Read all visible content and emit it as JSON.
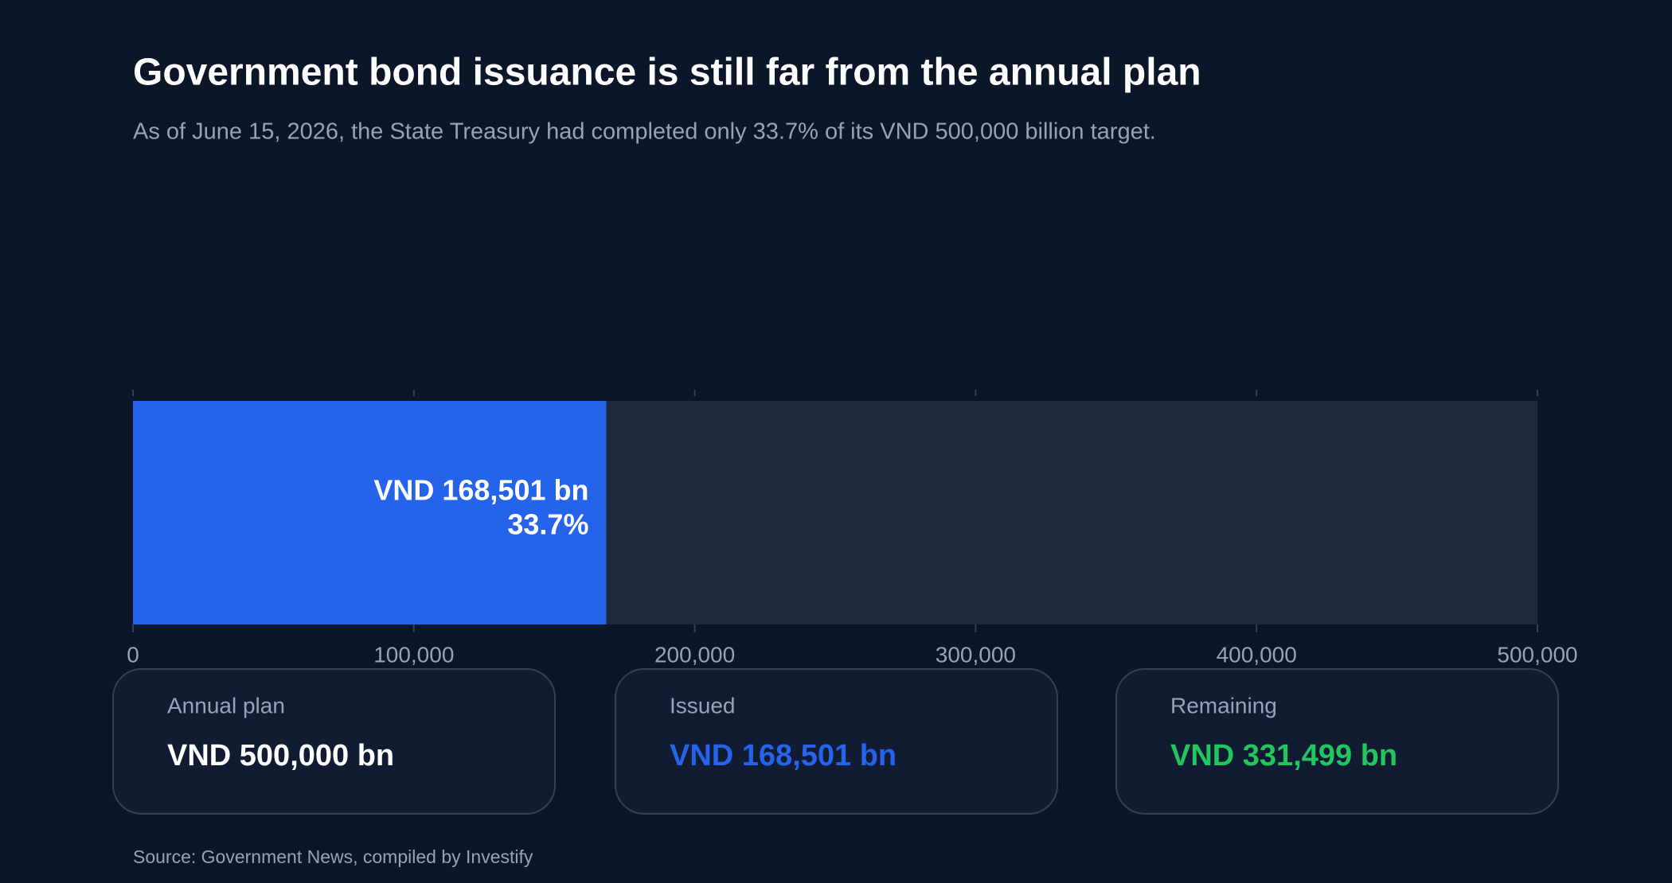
{
  "chart_data": {
    "type": "bar",
    "title": "Government bond issuance is still far from the annual plan",
    "subtitle": "As of June 15, 2026, the State Treasury had completed only 33.7% of its VND 500,000 billion target.",
    "values": [
      168501
    ],
    "value_labels": [
      "VND 168,501 bn"
    ],
    "shares": [
      33.7
    ],
    "share_labels": [
      "33.7%"
    ],
    "color": "#2563eb",
    "track_color": "#1e293b",
    "xlim": [
      0,
      500000
    ],
    "xticks": [
      0,
      {
        "value": 100000,
        "label": "100,000"
      },
      {
        "value": 200000,
        "label": "200,000"
      },
      {
        "value": 300000,
        "label": "300,000"
      },
      {
        "value": 400000,
        "label": "400,000"
      },
      {
        "value": 500000,
        "label": "500,000"
      }
    ],
    "source": "Source: Government News, compiled by Investify"
  },
  "cards": [
    {
      "label": "Annual plan",
      "value": 500000,
      "value_label": "VND 500,000 bn",
      "color": "#ffffff"
    },
    {
      "label": "Issued",
      "value": 168501,
      "value_label": "VND 168,501 bn",
      "color": "#2563eb"
    },
    {
      "label": "Remaining",
      "value": 331499,
      "value_label": "VND 331,499 bn",
      "color": "#22c55e"
    }
  ]
}
